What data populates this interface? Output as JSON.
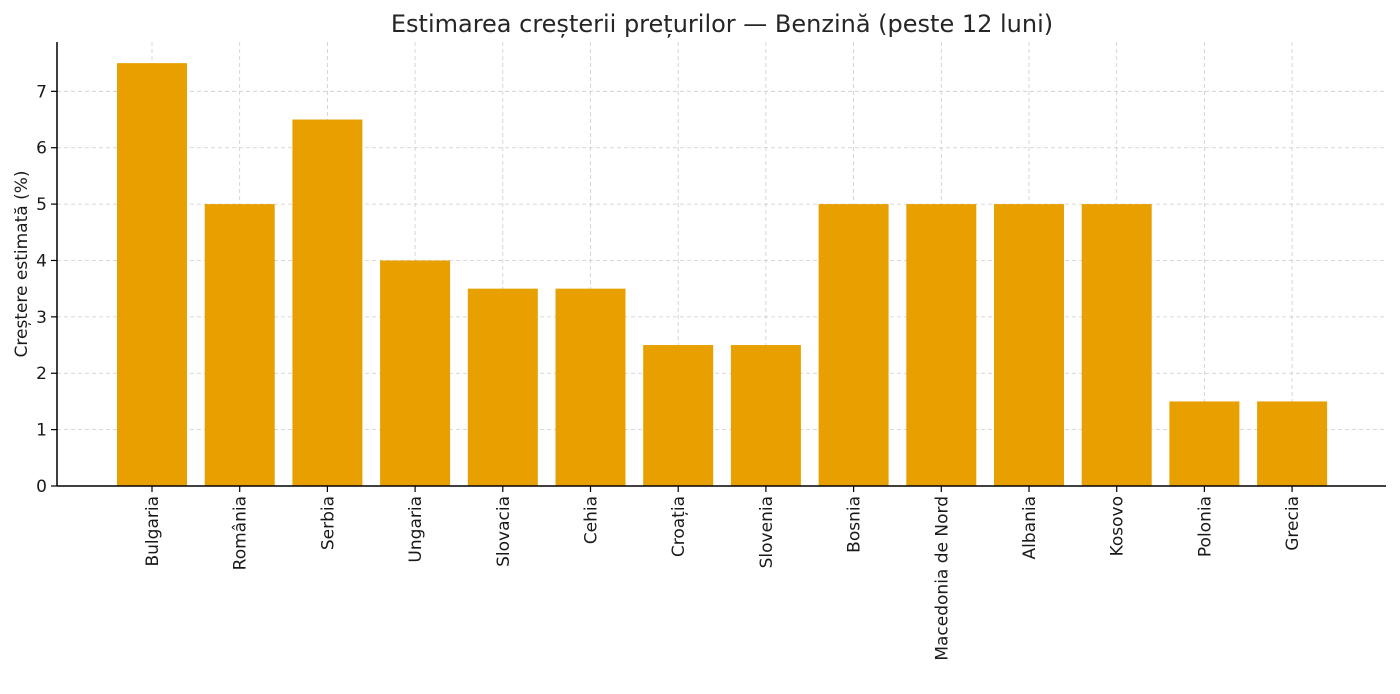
{
  "chart_data": {
    "type": "bar",
    "title": "Estimarea creșterii prețurilor — Benzină (peste 12 luni)",
    "xlabel": "",
    "ylabel": "Creștere estimată (%)",
    "categories": [
      "Bulgaria",
      "România",
      "Serbia",
      "Ungaria",
      "Slovacia",
      "Cehia",
      "Croația",
      "Slovenia",
      "Bosnia",
      "Macedonia de Nord",
      "Albania",
      "Kosovo",
      "Polonia",
      "Grecia"
    ],
    "values": [
      7.5,
      5,
      6.5,
      4,
      3.5,
      3.5,
      2.5,
      2.5,
      5,
      5,
      5,
      5,
      1.5,
      1.5
    ],
    "ylim": [
      0,
      7.875
    ],
    "yticks": [
      0,
      1,
      2,
      3,
      4,
      5,
      6,
      7
    ],
    "grid": true,
    "legend": "none",
    "bar_color": "#E8A000",
    "grid_color": "#cccccc",
    "axis_color": "#000000"
  }
}
